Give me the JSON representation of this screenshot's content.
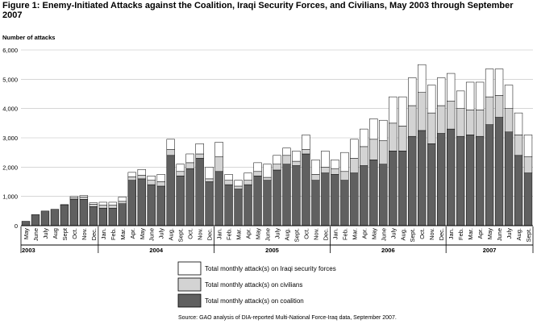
{
  "title": "Figure 1: Enemy-Initiated Attacks against the Coalition, Iraqi Security Forces, and Civilians, May 2003 through September 2007",
  "source": "Source: GAO analysis of DIA-reported Multi-National Force-Iraq data, September 2007.",
  "chart_data": {
    "type": "bar",
    "stacked": true,
    "ylabel": "Number of attacks",
    "ylim": [
      0,
      6000
    ],
    "yticks": [
      0,
      1000,
      2000,
      3000,
      4000,
      5000,
      6000
    ],
    "ytick_labels": [
      "0",
      "1,000",
      "2,000",
      "3,000",
      "4,000",
      "5,000",
      "6,000"
    ],
    "grid": true,
    "legend_position": "bottom-center",
    "categories": [
      "May",
      "June",
      "July",
      "Aug",
      "Sept",
      "Oct.",
      "Nov.",
      "Dec.",
      "Jan.",
      "Feb.",
      "Mar.",
      "Apr.",
      "May",
      "June",
      "July",
      "Aug.",
      "Sept.",
      "Oct.",
      "Nov.",
      "Dec.",
      "Jan.",
      "Feb.",
      "Mar.",
      "Apr.",
      "May",
      "June",
      "July",
      "Aug.",
      "Sept.",
      "Oct.",
      "Nov.",
      "Dec.",
      "Jan.",
      "Feb.",
      "Mar.",
      "Apr.",
      "May",
      "June",
      "July",
      "Aug.",
      "Sept.",
      "Oct.",
      "Nov.",
      "Dec.",
      "Jan.",
      "Feb.",
      "Mar.",
      "Apr.",
      "May",
      "June",
      "July",
      "Aug.",
      "Sept."
    ],
    "years": [
      {
        "label": "2003",
        "start": 0,
        "count": 8
      },
      {
        "label": "2004",
        "start": 8,
        "count": 12
      },
      {
        "label": "2005",
        "start": 20,
        "count": 12
      },
      {
        "label": "2006",
        "start": 32,
        "count": 12
      },
      {
        "label": "2007",
        "start": 44,
        "count": 9
      }
    ],
    "series": [
      {
        "name": "Total monthly attack(s) on coalition",
        "color": "#606060",
        "values": [
          150,
          380,
          500,
          560,
          700,
          900,
          900,
          650,
          600,
          600,
          750,
          1550,
          1600,
          1400,
          1350,
          2400,
          1700,
          1950,
          2300,
          1500,
          1850,
          1400,
          1250,
          1400,
          1700,
          1550,
          1900,
          2100,
          2050,
          2450,
          1550,
          1800,
          1750,
          1550,
          1800,
          2050,
          2250,
          2100,
          2550,
          2550,
          3050,
          3250,
          2800,
          3150,
          3300,
          3050,
          3100,
          3050,
          3450,
          3700,
          3200,
          2400,
          1800
        ]
      },
      {
        "name": "Total monthly attack(s) on civilians",
        "color": "#d3d3d3",
        "values": [
          0,
          0,
          0,
          0,
          20,
          50,
          80,
          80,
          100,
          100,
          80,
          120,
          120,
          150,
          150,
          200,
          150,
          200,
          150,
          100,
          500,
          150,
          100,
          150,
          150,
          100,
          200,
          300,
          150,
          150,
          200,
          200,
          200,
          300,
          500,
          650,
          700,
          800,
          950,
          850,
          1050,
          1300,
          1050,
          950,
          950,
          950,
          850,
          900,
          950,
          750,
          800,
          700,
          550
        ]
      },
      {
        "name": "Total monthly attack(s) on Iraqi security forces",
        "color": "#ffffff",
        "values": [
          0,
          0,
          0,
          0,
          0,
          50,
          50,
          50,
          100,
          100,
          150,
          150,
          200,
          150,
          250,
          350,
          250,
          300,
          350,
          400,
          500,
          200,
          200,
          250,
          300,
          450,
          300,
          250,
          350,
          500,
          500,
          550,
          300,
          650,
          650,
          600,
          700,
          700,
          900,
          1000,
          950,
          950,
          950,
          950,
          950,
          600,
          950,
          950,
          950,
          900,
          800,
          750,
          750
        ]
      }
    ]
  }
}
